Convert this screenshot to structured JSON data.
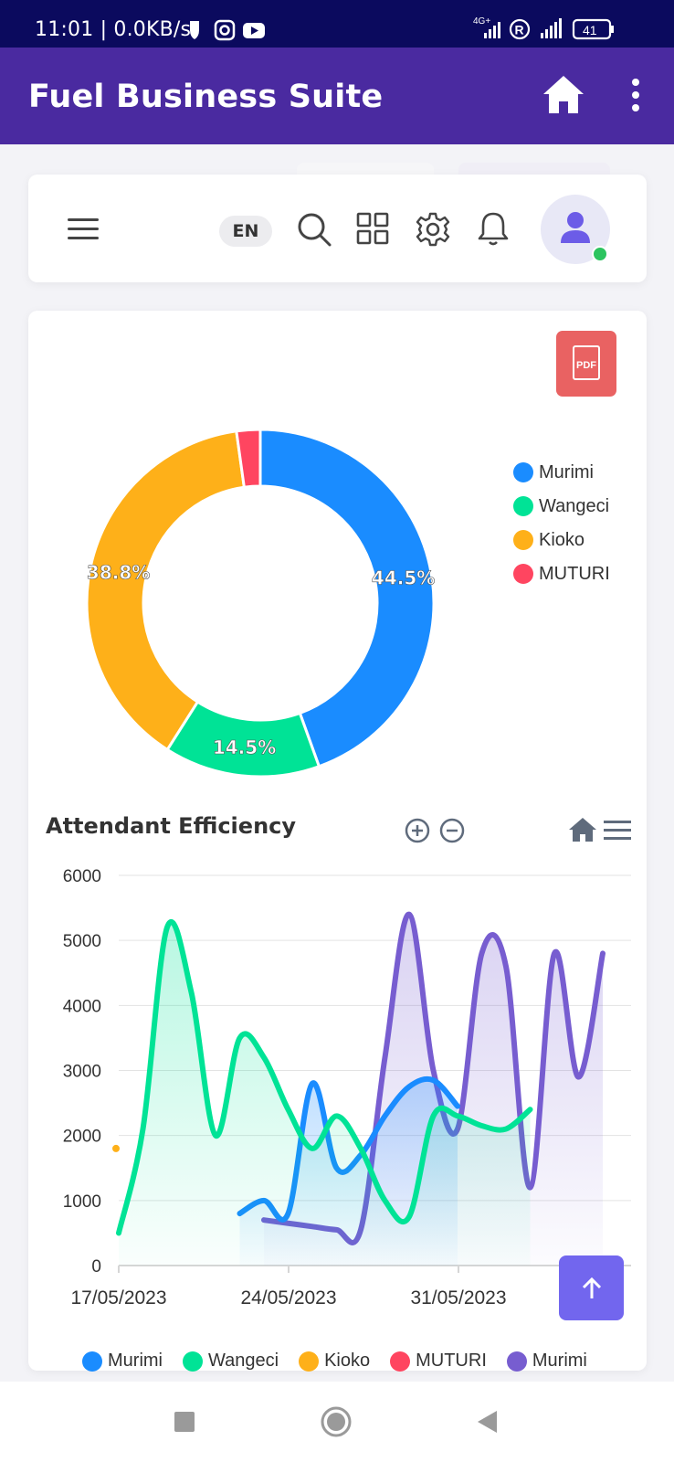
{
  "status_bar": {
    "time_speed": "11:01 | 0.0KB/s",
    "network_label": "4G+",
    "roaming_label": "R",
    "battery": "41"
  },
  "app_bar": {
    "title": "Fuel Business Suite",
    "icons": [
      "home-icon",
      "more-vert-icon"
    ]
  },
  "toolbar": {
    "language": "EN",
    "icons": [
      "menu-icon",
      "search-icon",
      "apps-grid-icon",
      "gear-icon",
      "bell-icon",
      "user-icon"
    ],
    "online_color": "#2cc45f"
  },
  "pdf_button": {
    "label": "PDF"
  },
  "colors": {
    "appbar": "#4a2aa0",
    "murimi": "#1a8cff",
    "wangeci": "#00e396",
    "kioko": "#feb019",
    "muturi": "#ff4560",
    "murimi2": "#775dd0",
    "scroll_button": "#7266ee"
  },
  "chart_data": [
    {
      "type": "pie",
      "variant": "donut",
      "labels": [
        "Murimi",
        "Wangeci",
        "Kioko",
        "MUTURI"
      ],
      "values": [
        44.5,
        14.5,
        38.8,
        2.2
      ],
      "data_labels": [
        "44.5%",
        "14.5%",
        "38.8%",
        ""
      ],
      "legend_placement": "right"
    },
    {
      "type": "area",
      "title": "Attendant Efficiency",
      "x_ticks": [
        "17/05/2023",
        "24/05/2023",
        "31/05/2023"
      ],
      "y_ticks": [
        "6000",
        "5000",
        "4000",
        "3000",
        "2000",
        "1000",
        "0"
      ],
      "ylim": [
        0,
        6000
      ],
      "grid": true,
      "legend_placement": "bottom",
      "toolbar_icons": [
        "zoom-in-icon",
        "zoom-out-icon",
        "reset-home-icon",
        "hamburger-menu-icon"
      ],
      "series": [
        {
          "name": "Murimi",
          "color": "#1a8cff",
          "points": [
            [
              5,
              800
            ],
            [
              6,
              1000
            ],
            [
              7,
              800
            ],
            [
              8,
              2800
            ],
            [
              9,
              1500
            ],
            [
              10,
              1700
            ],
            [
              11,
              2300
            ],
            [
              12,
              2750
            ],
            [
              13,
              2850
            ],
            [
              14,
              2450
            ]
          ]
        },
        {
          "name": "Wangeci",
          "color": "#00e396",
          "points": [
            [
              0,
              500
            ],
            [
              1,
              2100
            ],
            [
              2,
              5200
            ],
            [
              3,
              4200
            ],
            [
              4,
              2000
            ],
            [
              5,
              3500
            ],
            [
              6,
              3200
            ],
            [
              7,
              2400
            ],
            [
              8,
              1800
            ],
            [
              9,
              2300
            ],
            [
              10,
              1800
            ],
            [
              11,
              1000
            ],
            [
              12,
              750
            ],
            [
              13,
              2300
            ],
            [
              14,
              2300
            ],
            [
              15,
              2150
            ],
            [
              16,
              2100
            ],
            [
              17,
              2400
            ]
          ]
        },
        {
          "name": "Kioko",
          "color": "#feb019",
          "points": [
            [
              0,
              1800
            ]
          ]
        },
        {
          "name": "MUTURI",
          "color": "#ff4560",
          "points": []
        },
        {
          "name": "Murimi",
          "color": "#775dd0",
          "points": [
            [
              6,
              700
            ],
            [
              7,
              650
            ],
            [
              8,
              600
            ],
            [
              9,
              550
            ],
            [
              10,
              550
            ],
            [
              11,
              3200
            ],
            [
              12,
              5400
            ],
            [
              13,
              3000
            ],
            [
              14,
              2100
            ],
            [
              15,
              4800
            ],
            [
              16,
              4600
            ],
            [
              17,
              1200
            ],
            [
              18,
              4800
            ],
            [
              19,
              2900
            ],
            [
              20,
              4800
            ]
          ]
        }
      ]
    }
  ]
}
